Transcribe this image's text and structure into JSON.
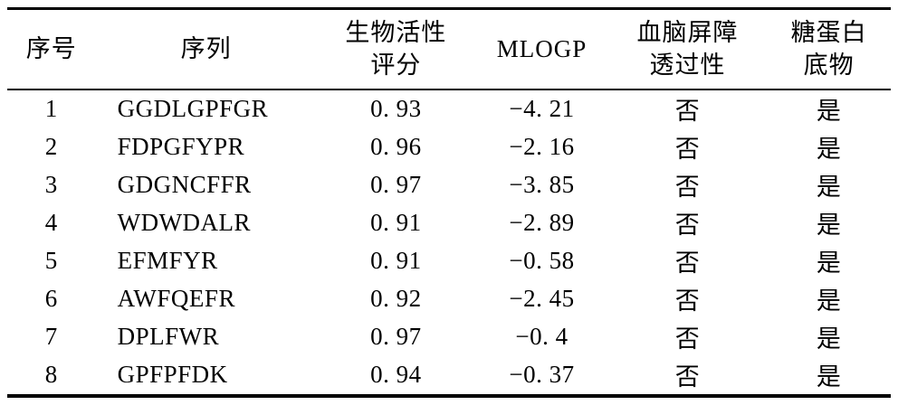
{
  "table": {
    "headers": [
      {
        "name": "index",
        "lines": [
          "序号"
        ]
      },
      {
        "name": "sequence",
        "lines": [
          "序列"
        ]
      },
      {
        "name": "score",
        "lines": [
          "生物活性",
          "评分"
        ]
      },
      {
        "name": "mlogp",
        "lines": [
          "MLOGP"
        ]
      },
      {
        "name": "bbb",
        "lines": [
          "血脑屏障",
          "透过性"
        ]
      },
      {
        "name": "glyco",
        "lines": [
          "糖蛋白",
          "底物"
        ]
      }
    ],
    "rows": [
      [
        "1",
        "GGDLGPFGR",
        "0. 93",
        "−4. 21",
        "否",
        "是"
      ],
      [
        "2",
        "FDPGFYPR",
        "0. 96",
        "−2. 16",
        "否",
        "是"
      ],
      [
        "3",
        "GDGNCFFR",
        "0. 97",
        "−3. 85",
        "否",
        "是"
      ],
      [
        "4",
        "WDWDALR",
        "0. 91",
        "−2. 89",
        "否",
        "是"
      ],
      [
        "5",
        "EFMFYR",
        "0. 91",
        "−0. 58",
        "否",
        "是"
      ],
      [
        "6",
        "AWFQEFR",
        "0. 92",
        "−2. 45",
        "否",
        "是"
      ],
      [
        "7",
        "DPLFWR",
        "0. 97",
        "−0. 4",
        "否",
        "是"
      ],
      [
        "8",
        "GPFPFDK",
        "0. 94",
        "−0. 37",
        "否",
        "是"
      ]
    ]
  }
}
